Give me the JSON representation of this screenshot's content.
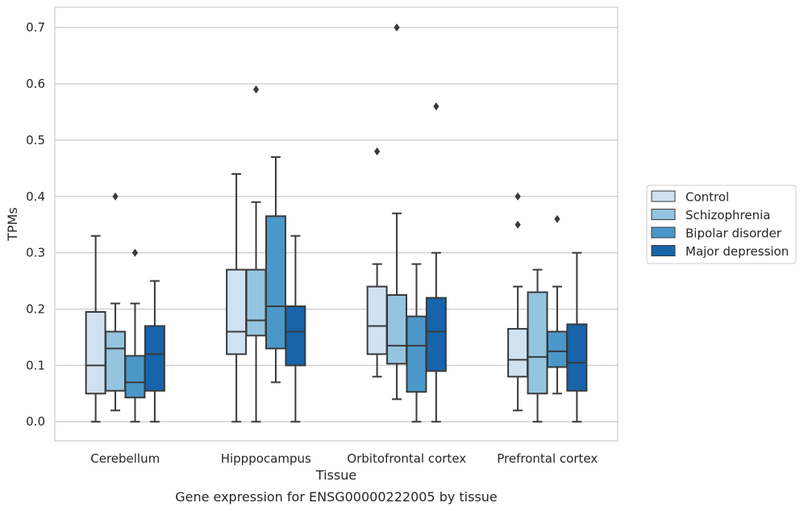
{
  "chart_data": {
    "type": "box",
    "title": "",
    "caption": "Gene expression for ENSG00000222005 by tissue",
    "xlabel": "Tissue",
    "ylabel": "TPMs",
    "ylim": [
      -0.034,
      0.736
    ],
    "yticks": [
      0.0,
      0.1,
      0.2,
      0.3,
      0.4,
      0.5,
      0.6,
      0.7
    ],
    "ytick_labels": [
      "0.0",
      "0.1",
      "0.2",
      "0.3",
      "0.4",
      "0.5",
      "0.6",
      "0.7"
    ],
    "grid": true,
    "legend_position": "right",
    "categories": [
      "Cerebellum",
      "Hipppocampus",
      "Orbitofrontal cortex",
      "Prefrontal cortex"
    ],
    "series": [
      {
        "name": "Control",
        "color": "#d0e1f2",
        "boxes": [
          {
            "whislo": 0.0,
            "q1": 0.05,
            "med": 0.1,
            "q3": 0.195,
            "whishi": 0.33,
            "fliers": []
          },
          {
            "whislo": 0.0,
            "q1": 0.12,
            "med": 0.16,
            "q3": 0.27,
            "whishi": 0.44,
            "fliers": []
          },
          {
            "whislo": 0.08,
            "q1": 0.12,
            "med": 0.17,
            "q3": 0.24,
            "whishi": 0.28,
            "fliers": [
              0.48
            ]
          },
          {
            "whislo": 0.02,
            "q1": 0.08,
            "med": 0.11,
            "q3": 0.165,
            "whishi": 0.24,
            "fliers": [
              0.35,
              0.4
            ]
          }
        ]
      },
      {
        "name": "Schizophrenia",
        "color": "#94c4df",
        "boxes": [
          {
            "whislo": 0.02,
            "q1": 0.055,
            "med": 0.13,
            "q3": 0.16,
            "whishi": 0.21,
            "fliers": [
              0.4
            ]
          },
          {
            "whislo": 0.0,
            "q1": 0.153,
            "med": 0.18,
            "q3": 0.27,
            "whishi": 0.39,
            "fliers": [
              0.59
            ]
          },
          {
            "whislo": 0.04,
            "q1": 0.103,
            "med": 0.135,
            "q3": 0.225,
            "whishi": 0.37,
            "fliers": [
              0.7
            ]
          },
          {
            "whislo": 0.0,
            "q1": 0.05,
            "med": 0.115,
            "q3": 0.23,
            "whishi": 0.27,
            "fliers": []
          }
        ]
      },
      {
        "name": "Bipolar disorder",
        "color": "#4a98c9",
        "boxes": [
          {
            "whislo": 0.0,
            "q1": 0.043,
            "med": 0.07,
            "q3": 0.117,
            "whishi": 0.21,
            "fliers": [
              0.3
            ]
          },
          {
            "whislo": 0.07,
            "q1": 0.13,
            "med": 0.205,
            "q3": 0.365,
            "whishi": 0.47,
            "fliers": []
          },
          {
            "whislo": 0.0,
            "q1": 0.053,
            "med": 0.135,
            "q3": 0.187,
            "whishi": 0.28,
            "fliers": []
          },
          {
            "whislo": 0.05,
            "q1": 0.097,
            "med": 0.125,
            "q3": 0.16,
            "whishi": 0.24,
            "fliers": [
              0.36
            ]
          }
        ]
      },
      {
        "name": "Major depression",
        "color": "#1764ab",
        "boxes": [
          {
            "whislo": 0.0,
            "q1": 0.055,
            "med": 0.12,
            "q3": 0.17,
            "whishi": 0.25,
            "fliers": []
          },
          {
            "whislo": 0.0,
            "q1": 0.1,
            "med": 0.16,
            "q3": 0.205,
            "whishi": 0.33,
            "fliers": []
          },
          {
            "whislo": 0.0,
            "q1": 0.09,
            "med": 0.16,
            "q3": 0.22,
            "whishi": 0.3,
            "fliers": [
              0.56
            ]
          },
          {
            "whislo": 0.0,
            "q1": 0.055,
            "med": 0.105,
            "q3": 0.173,
            "whishi": 0.3,
            "fliers": []
          }
        ]
      }
    ],
    "colors": {
      "line": "#3a3a3a",
      "grid": "#cccccc",
      "frame": "#cccccc"
    }
  }
}
